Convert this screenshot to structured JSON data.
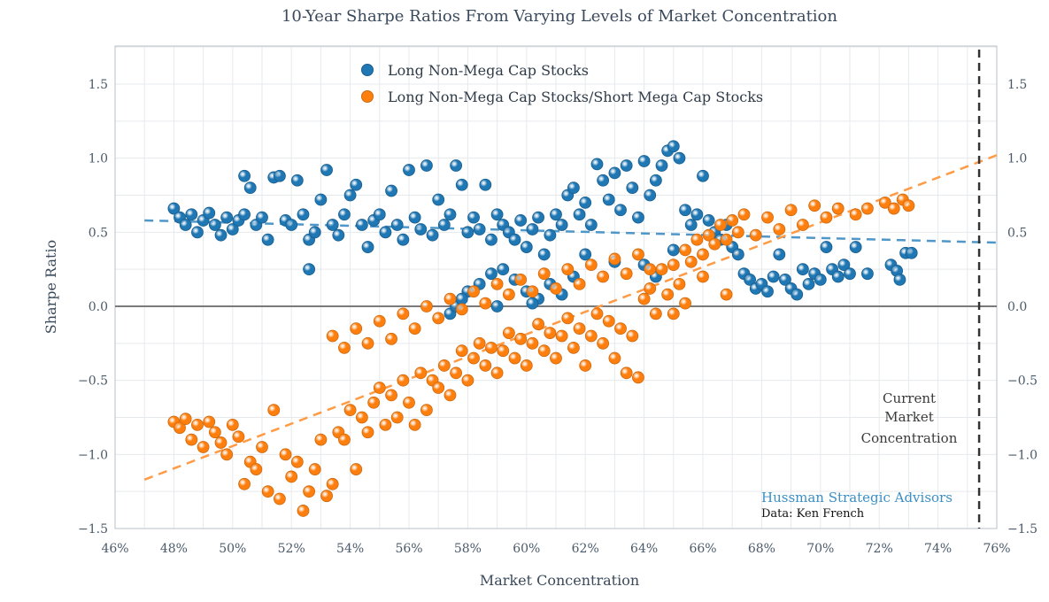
{
  "chart_data": {
    "type": "scatter",
    "title": "10-Year Sharpe Ratios From Varying Levels of Market Concentration",
    "xlabel": "Market Concentration",
    "ylabel": "Sharpe Ratio",
    "xlim": [
      46,
      76
    ],
    "ylim": [
      -1.5,
      1.75
    ],
    "grid": true,
    "legend_placement": "top-center",
    "x_ticks": [
      "46%",
      "48%",
      "50%",
      "52%",
      "54%",
      "56%",
      "58%",
      "60%",
      "62%",
      "64%",
      "66%",
      "68%",
      "70%",
      "72%",
      "74%",
      "76%"
    ],
    "y_ticks_left": [
      "1.5",
      "1.0",
      "0.5",
      "0.0",
      "−0.5",
      "−1.0",
      "−1.5"
    ],
    "y_ticks_right": [
      "1.5",
      "1.0",
      "0.5",
      "0.0",
      "−0.5",
      "−1.0",
      "−1.5"
    ],
    "series": [
      {
        "name": "Long Non-Mega Cap Stocks",
        "color": "#1f77b4",
        "trend": {
          "x": [
            47,
            76
          ],
          "y": [
            0.58,
            0.43
          ]
        },
        "points": [
          [
            48.0,
            0.66
          ],
          [
            48.2,
            0.6
          ],
          [
            48.4,
            0.55
          ],
          [
            48.6,
            0.62
          ],
          [
            48.8,
            0.5
          ],
          [
            49.0,
            0.58
          ],
          [
            49.2,
            0.63
          ],
          [
            49.4,
            0.55
          ],
          [
            49.6,
            0.48
          ],
          [
            49.8,
            0.6
          ],
          [
            50.0,
            0.52
          ],
          [
            50.2,
            0.58
          ],
          [
            50.4,
            0.62
          ],
          [
            50.4,
            0.88
          ],
          [
            50.6,
            0.8
          ],
          [
            50.8,
            0.55
          ],
          [
            51.0,
            0.6
          ],
          [
            51.2,
            0.45
          ],
          [
            51.4,
            0.87
          ],
          [
            51.6,
            0.88
          ],
          [
            51.8,
            0.58
          ],
          [
            52.0,
            0.55
          ],
          [
            52.2,
            0.85
          ],
          [
            52.4,
            0.62
          ],
          [
            52.6,
            0.45
          ],
          [
            52.6,
            0.25
          ],
          [
            52.8,
            0.5
          ],
          [
            53.0,
            0.72
          ],
          [
            53.2,
            0.92
          ],
          [
            53.4,
            0.55
          ],
          [
            53.6,
            0.48
          ],
          [
            53.8,
            0.62
          ],
          [
            54.0,
            0.75
          ],
          [
            54.2,
            0.82
          ],
          [
            54.4,
            0.55
          ],
          [
            54.6,
            0.4
          ],
          [
            54.8,
            0.58
          ],
          [
            55.0,
            0.62
          ],
          [
            55.2,
            0.5
          ],
          [
            55.4,
            0.78
          ],
          [
            55.6,
            0.55
          ],
          [
            55.8,
            0.45
          ],
          [
            56.0,
            0.92
          ],
          [
            56.2,
            0.6
          ],
          [
            56.4,
            0.52
          ],
          [
            56.6,
            0.95
          ],
          [
            56.8,
            0.48
          ],
          [
            57.0,
            0.72
          ],
          [
            57.2,
            0.55
          ],
          [
            57.4,
            0.62
          ],
          [
            57.6,
            0.95
          ],
          [
            57.8,
            0.82
          ],
          [
            58.0,
            0.5
          ],
          [
            58.2,
            0.6
          ],
          [
            58.4,
            0.52
          ],
          [
            58.6,
            0.82
          ],
          [
            58.8,
            0.45
          ],
          [
            59.0,
            0.62
          ],
          [
            59.2,
            0.55
          ],
          [
            59.4,
            0.5
          ],
          [
            59.6,
            0.45
          ],
          [
            59.8,
            0.58
          ],
          [
            60.0,
            0.4
          ],
          [
            60.2,
            0.52
          ],
          [
            60.4,
            0.6
          ],
          [
            60.6,
            0.35
          ],
          [
            60.8,
            0.48
          ],
          [
            61.0,
            0.62
          ],
          [
            61.2,
            0.55
          ],
          [
            61.4,
            0.75
          ],
          [
            61.6,
            0.8
          ],
          [
            61.8,
            0.62
          ],
          [
            62.0,
            0.7
          ],
          [
            62.2,
            0.55
          ],
          [
            62.4,
            0.96
          ],
          [
            62.6,
            0.85
          ],
          [
            62.8,
            0.72
          ],
          [
            63.0,
            0.9
          ],
          [
            63.2,
            0.65
          ],
          [
            63.4,
            0.95
          ],
          [
            63.6,
            0.8
          ],
          [
            63.8,
            0.6
          ],
          [
            64.0,
            0.98
          ],
          [
            64.2,
            0.75
          ],
          [
            64.4,
            0.85
          ],
          [
            64.6,
            0.95
          ],
          [
            64.8,
            1.05
          ],
          [
            65.0,
            1.08
          ],
          [
            65.2,
            1.0
          ],
          [
            65.4,
            0.65
          ],
          [
            65.6,
            0.55
          ],
          [
            65.8,
            0.62
          ],
          [
            66.0,
            0.88
          ],
          [
            66.2,
            0.58
          ],
          [
            66.4,
            0.5
          ],
          [
            66.6,
            0.45
          ],
          [
            66.8,
            0.55
          ],
          [
            67.0,
            0.4
          ],
          [
            67.2,
            0.35
          ],
          [
            67.4,
            0.22
          ],
          [
            67.6,
            0.18
          ],
          [
            67.8,
            0.12
          ],
          [
            68.0,
            0.15
          ],
          [
            68.2,
            0.1
          ],
          [
            68.4,
            0.2
          ],
          [
            68.6,
            0.35
          ],
          [
            68.8,
            0.18
          ],
          [
            69.0,
            0.12
          ],
          [
            69.2,
            0.08
          ],
          [
            69.4,
            0.25
          ],
          [
            69.6,
            0.15
          ],
          [
            69.8,
            0.22
          ],
          [
            70.0,
            0.18
          ],
          [
            70.2,
            0.4
          ],
          [
            70.4,
            0.25
          ],
          [
            70.6,
            0.2
          ],
          [
            70.8,
            0.28
          ],
          [
            71.0,
            0.22
          ],
          [
            71.2,
            0.4
          ],
          [
            71.6,
            0.22
          ],
          [
            72.4,
            0.28
          ],
          [
            72.6,
            0.24
          ],
          [
            72.7,
            0.18
          ],
          [
            72.9,
            0.36
          ],
          [
            73.1,
            0.36
          ],
          [
            58.0,
            0.1
          ],
          [
            58.4,
            0.15
          ],
          [
            58.8,
            0.22
          ],
          [
            59.2,
            0.25
          ],
          [
            59.6,
            0.18
          ],
          [
            60.0,
            0.1
          ],
          [
            60.4,
            0.05
          ],
          [
            60.8,
            0.15
          ],
          [
            61.2,
            0.08
          ],
          [
            61.6,
            0.2
          ],
          [
            57.4,
            -0.05
          ],
          [
            57.6,
            0.0
          ],
          [
            57.8,
            0.05
          ],
          [
            59.0,
            0.0
          ],
          [
            60.2,
            0.02
          ],
          [
            62.0,
            0.35
          ],
          [
            63.0,
            0.3
          ],
          [
            64.0,
            0.28
          ],
          [
            64.4,
            0.2
          ],
          [
            65.0,
            0.38
          ]
        ]
      },
      {
        "name": "Long Non-Mega Cap Stocks/Short Mega Cap Stocks",
        "color": "#ff7f0e",
        "trend": {
          "x": [
            47,
            76
          ],
          "y": [
            -1.17,
            1.02
          ]
        },
        "points": [
          [
            48.0,
            -0.78
          ],
          [
            48.2,
            -0.82
          ],
          [
            48.4,
            -0.76
          ],
          [
            48.6,
            -0.9
          ],
          [
            48.8,
            -0.8
          ],
          [
            49.0,
            -0.95
          ],
          [
            49.2,
            -0.78
          ],
          [
            49.4,
            -0.85
          ],
          [
            49.6,
            -0.92
          ],
          [
            49.8,
            -1.0
          ],
          [
            50.0,
            -0.8
          ],
          [
            50.2,
            -0.88
          ],
          [
            50.4,
            -1.2
          ],
          [
            50.6,
            -1.05
          ],
          [
            50.8,
            -1.1
          ],
          [
            51.0,
            -0.95
          ],
          [
            51.2,
            -1.25
          ],
          [
            51.4,
            -0.7
          ],
          [
            51.6,
            -1.3
          ],
          [
            51.8,
            -1.0
          ],
          [
            52.0,
            -1.15
          ],
          [
            52.2,
            -1.05
          ],
          [
            52.4,
            -1.38
          ],
          [
            52.6,
            -1.25
          ],
          [
            52.8,
            -1.1
          ],
          [
            53.0,
            -0.9
          ],
          [
            53.2,
            -1.28
          ],
          [
            53.4,
            -1.2
          ],
          [
            53.6,
            -0.85
          ],
          [
            53.8,
            -0.9
          ],
          [
            54.0,
            -0.7
          ],
          [
            54.2,
            -1.1
          ],
          [
            54.4,
            -0.75
          ],
          [
            54.6,
            -0.85
          ],
          [
            54.8,
            -0.65
          ],
          [
            55.0,
            -0.55
          ],
          [
            55.2,
            -0.8
          ],
          [
            55.4,
            -0.6
          ],
          [
            55.6,
            -0.75
          ],
          [
            55.8,
            -0.5
          ],
          [
            56.0,
            -0.65
          ],
          [
            56.2,
            -0.8
          ],
          [
            56.4,
            -0.45
          ],
          [
            56.6,
            -0.7
          ],
          [
            56.8,
            -0.5
          ],
          [
            57.0,
            -0.55
          ],
          [
            57.2,
            -0.4
          ],
          [
            57.4,
            -0.6
          ],
          [
            57.6,
            -0.45
          ],
          [
            57.8,
            -0.3
          ],
          [
            58.0,
            -0.5
          ],
          [
            58.2,
            -0.35
          ],
          [
            58.4,
            -0.25
          ],
          [
            58.6,
            -0.4
          ],
          [
            58.8,
            -0.28
          ],
          [
            59.0,
            -0.45
          ],
          [
            59.2,
            -0.3
          ],
          [
            59.4,
            -0.18
          ],
          [
            59.6,
            -0.35
          ],
          [
            59.8,
            -0.22
          ],
          [
            60.0,
            -0.4
          ],
          [
            60.2,
            -0.25
          ],
          [
            60.4,
            -0.12
          ],
          [
            60.6,
            -0.3
          ],
          [
            60.8,
            -0.18
          ],
          [
            61.0,
            -0.35
          ],
          [
            61.2,
            -0.2
          ],
          [
            61.4,
            -0.08
          ],
          [
            61.6,
            -0.28
          ],
          [
            61.8,
            -0.15
          ],
          [
            62.0,
            -0.4
          ],
          [
            62.2,
            -0.2
          ],
          [
            62.4,
            -0.05
          ],
          [
            62.6,
            -0.25
          ],
          [
            62.8,
            -0.1
          ],
          [
            63.0,
            -0.35
          ],
          [
            63.2,
            -0.15
          ],
          [
            63.4,
            -0.45
          ],
          [
            63.6,
            -0.2
          ],
          [
            63.8,
            -0.48
          ],
          [
            64.0,
            0.05
          ],
          [
            64.2,
            0.12
          ],
          [
            64.4,
            -0.05
          ],
          [
            64.6,
            0.25
          ],
          [
            64.8,
            0.08
          ],
          [
            65.0,
            0.28
          ],
          [
            65.2,
            0.15
          ],
          [
            65.4,
            0.38
          ],
          [
            65.6,
            0.3
          ],
          [
            65.8,
            0.45
          ],
          [
            66.0,
            0.35
          ],
          [
            66.2,
            0.48
          ],
          [
            66.4,
            0.42
          ],
          [
            66.6,
            0.55
          ],
          [
            66.8,
            0.45
          ],
          [
            67.0,
            0.58
          ],
          [
            67.2,
            0.5
          ],
          [
            67.4,
            0.62
          ],
          [
            67.8,
            0.48
          ],
          [
            68.2,
            0.6
          ],
          [
            68.6,
            0.52
          ],
          [
            69.0,
            0.65
          ],
          [
            69.4,
            0.55
          ],
          [
            69.8,
            0.68
          ],
          [
            70.2,
            0.6
          ],
          [
            70.6,
            0.66
          ],
          [
            71.2,
            0.62
          ],
          [
            71.6,
            0.66
          ],
          [
            72.2,
            0.7
          ],
          [
            72.5,
            0.66
          ],
          [
            72.8,
            0.72
          ],
          [
            73.0,
            0.68
          ],
          [
            53.4,
            -0.2
          ],
          [
            53.8,
            -0.28
          ],
          [
            54.2,
            -0.15
          ],
          [
            54.6,
            -0.25
          ],
          [
            55.0,
            -0.1
          ],
          [
            55.4,
            -0.22
          ],
          [
            55.8,
            -0.05
          ],
          [
            56.2,
            -0.15
          ],
          [
            56.6,
            0.0
          ],
          [
            57.0,
            -0.08
          ],
          [
            57.4,
            0.05
          ],
          [
            57.8,
            -0.02
          ],
          [
            58.2,
            0.1
          ],
          [
            58.6,
            0.02
          ],
          [
            59.0,
            0.15
          ],
          [
            59.4,
            0.08
          ],
          [
            59.8,
            0.18
          ],
          [
            60.2,
            0.1
          ],
          [
            60.6,
            0.22
          ],
          [
            61.0,
            0.12
          ],
          [
            61.4,
            0.25
          ],
          [
            61.8,
            0.15
          ],
          [
            62.2,
            0.28
          ],
          [
            62.6,
            0.2
          ],
          [
            63.0,
            0.32
          ],
          [
            63.4,
            0.22
          ],
          [
            63.8,
            0.35
          ],
          [
            64.2,
            0.25
          ],
          [
            65.0,
            -0.05
          ],
          [
            65.4,
            0.02
          ],
          [
            66.0,
            0.2
          ],
          [
            66.8,
            0.08
          ]
        ]
      }
    ],
    "annotations": [
      {
        "text_lines": [
          "Current",
          "Market",
          "Concentration"
        ],
        "x": 75.4,
        "y_top": -0.6
      }
    ],
    "reference_line_x": 75.4,
    "zero_line_y": 0.0
  },
  "brand": {
    "name": "Hussman Strategic Advisors",
    "source": "Data: Ken French",
    "color": "#3b8fc6"
  }
}
